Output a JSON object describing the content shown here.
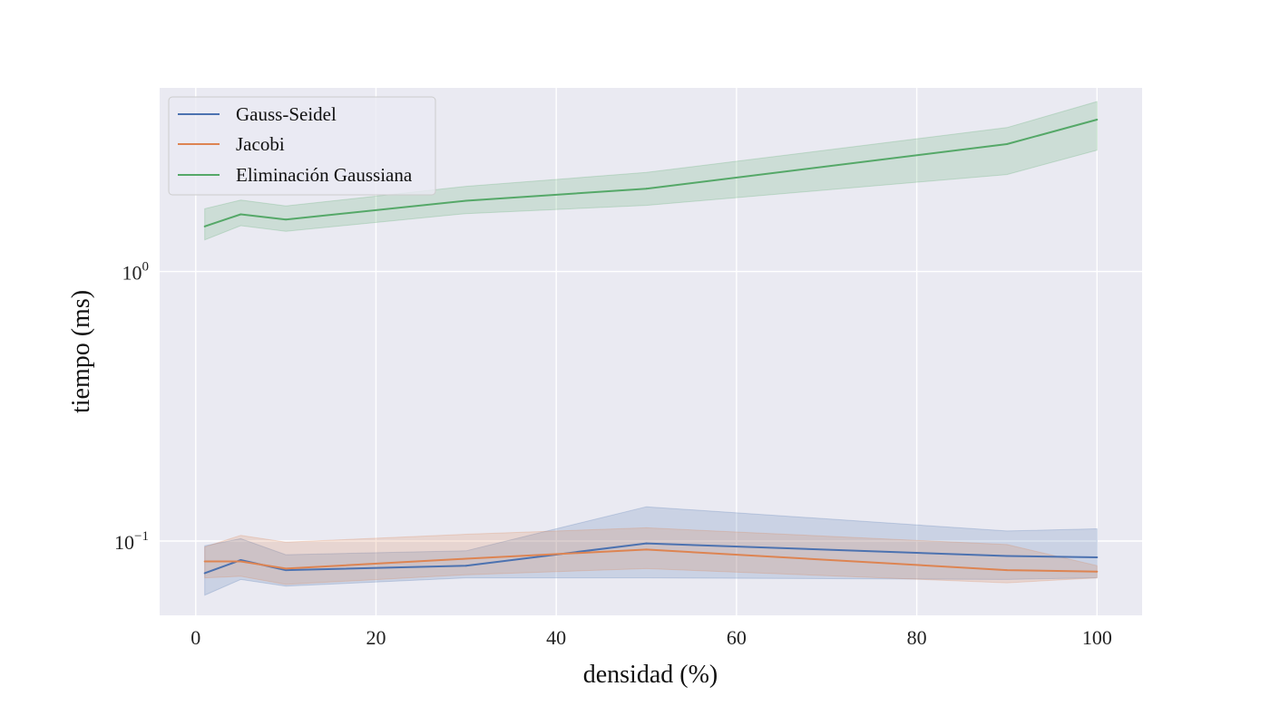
{
  "chart_data": {
    "type": "line",
    "xlabel": "densidad (%)",
    "ylabel": "tiempo (ms)",
    "xlim": [
      -4,
      105
    ],
    "ylim": [
      0.053,
      4.8
    ],
    "yscale": "log",
    "grid": true,
    "legend_position": "top-left",
    "xticks": [
      0,
      20,
      40,
      60,
      80,
      100
    ],
    "xtick_labels": [
      "0",
      "20",
      "40",
      "60",
      "80",
      "100"
    ],
    "yticks": [
      {
        "value": 1,
        "base": "10",
        "exp": "0"
      },
      {
        "value": 0.1,
        "base": "10",
        "exp": "−1"
      }
    ],
    "x": [
      1,
      5,
      10,
      30,
      50,
      90,
      100
    ],
    "series": [
      {
        "name": "Gauss-Seidel",
        "color": "#4c72b0",
        "values": [
          0.076,
          0.085,
          0.078,
          0.081,
          0.098,
          0.088,
          0.087
        ],
        "lower": [
          0.063,
          0.072,
          0.068,
          0.073,
          0.073,
          0.072,
          0.073
        ],
        "upper": [
          0.096,
          0.102,
          0.089,
          0.092,
          0.134,
          0.109,
          0.111
        ]
      },
      {
        "name": "Jacobi",
        "color": "#dd8452",
        "values": [
          0.084,
          0.084,
          0.079,
          0.086,
          0.093,
          0.078,
          0.077
        ],
        "lower": [
          0.073,
          0.074,
          0.069,
          0.075,
          0.079,
          0.07,
          0.073
        ],
        "upper": [
          0.095,
          0.105,
          0.099,
          0.106,
          0.112,
          0.097,
          0.081
        ]
      },
      {
        "name": "Eliminación Gaussiana",
        "color": "#55a868",
        "values": [
          1.47,
          1.63,
          1.56,
          1.83,
          2.03,
          2.97,
          3.66
        ],
        "lower": [
          1.31,
          1.48,
          1.41,
          1.64,
          1.76,
          2.29,
          2.82
        ],
        "upper": [
          1.71,
          1.84,
          1.75,
          2.07,
          2.33,
          3.42,
          4.27
        ]
      }
    ]
  }
}
